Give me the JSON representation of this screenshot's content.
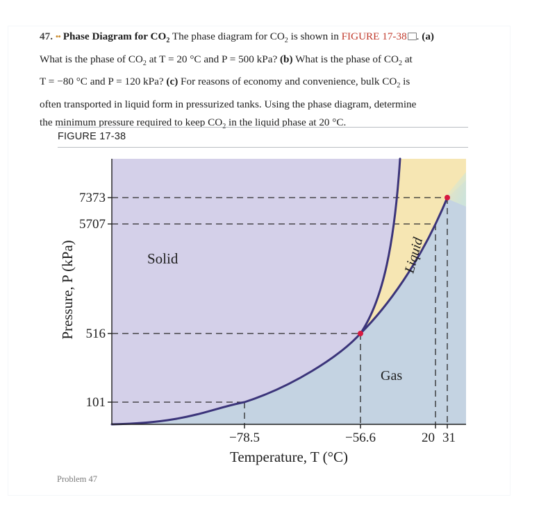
{
  "problem": {
    "number": "47.",
    "dots": "••",
    "title": "Phase Diagram for CO",
    "title_sub": "2",
    "line1_a": "The phase diagram for CO",
    "line1_sub": "2",
    "line1_b": "is shown in",
    "figure_ref": "FIGURE 17-38",
    "part_a_label": "(a)",
    "line2_a": "What is the phase of CO",
    "line2_sub": "2",
    "line2_b": "at T = 20 °C and P = 500 kPa?",
    "part_b_label": "(b)",
    "line2_c": "What is the phase of CO",
    "line2_c_sub": "2",
    "line2_d": "at",
    "line3_a": "T = −80 °C and P = 120 kPa?",
    "part_c_label": "(c)",
    "line3_b": "For reasons of economy and convenience, bulk CO",
    "line3_sub": "2",
    "line3_c": "is",
    "line4": "often transported in liquid form in pressurized tanks. Using the phase diagram, determine",
    "line5_a": "the minimum pressure required to keep CO",
    "line5_sub": "2",
    "line5_b": "in the liquid phase at 20 °C."
  },
  "figure": {
    "label": "FIGURE 17-38",
    "caption": "Problem 47"
  },
  "chart_data": {
    "type": "phase-diagram",
    "substance": "CO2",
    "xlabel": "Temperature, T (°C)",
    "ylabel": "Pressure, P (kPa)",
    "x_ticks": [
      "−78.5",
      "−56.6",
      "20",
      "31"
    ],
    "y_ticks": [
      "7373",
      "5707",
      "516",
      "101"
    ],
    "regions": [
      "Solid",
      "Liquid",
      "Gas"
    ],
    "points": {
      "sublimation_at_1atm": {
        "T": -78.5,
        "P": 101
      },
      "triple_point": {
        "T": -56.6,
        "P": 516
      },
      "liquid_vapor_at_20C": {
        "T": 20,
        "P": 5707
      },
      "critical_point": {
        "T": 31,
        "P": 7373
      }
    },
    "colors": {
      "solid": "#d4d0e9",
      "liquid": "#f6e6b3",
      "gas": "#c4d3e2",
      "curve": "#3b347a",
      "point": "#d7193f"
    }
  }
}
